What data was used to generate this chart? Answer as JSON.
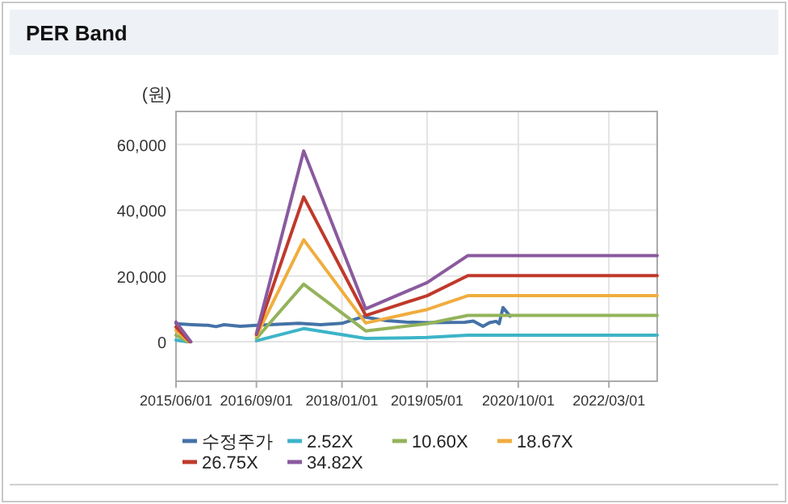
{
  "chart_data": {
    "type": "line",
    "title": "PER Band",
    "ylabel": "(원)",
    "xlim": [
      "2015-06-01",
      "2022-12-01"
    ],
    "xticks": [
      {
        "value": "2015-06-01",
        "label": "2015/06/01"
      },
      {
        "value": "2016-09-01",
        "label": "2016/09/01"
      },
      {
        "value": "2018-01-01",
        "label": "2018/01/01"
      },
      {
        "value": "2019-05-01",
        "label": "2019/05/01"
      },
      {
        "value": "2020-10-01",
        "label": "2020/10/01"
      },
      {
        "value": "2022-03-01",
        "label": "2022/03/01"
      }
    ],
    "ylim": [
      -12000,
      70000
    ],
    "yticks": [
      {
        "value": 0,
        "label": "0"
      },
      {
        "value": 20000,
        "label": "20,000"
      },
      {
        "value": 40000,
        "label": "40,000"
      },
      {
        "value": 60000,
        "label": "60,000"
      }
    ],
    "grid": true,
    "legend": "bottom",
    "series": [
      {
        "name": "수정주가",
        "color": "#4572a7",
        "x": [
          "2015-06-01",
          "2015-09-01",
          "2015-12-01",
          "2016-01-15",
          "2016-03-01",
          "2016-06-01",
          "2016-09-01",
          "2017-01-01",
          "2017-05-01",
          "2017-09-01",
          "2018-01-01",
          "2018-05-01",
          "2018-09-01",
          "2019-01-01",
          "2019-05-01",
          "2019-12-01",
          "2020-01-19",
          "2020-03-14",
          "2020-04-20",
          "2020-05-27",
          "2020-06-14",
          "2020-07-06",
          "2020-08-15"
        ],
        "values": [
          5500,
          5200,
          5000,
          4600,
          5200,
          4700,
          5000,
          5300,
          5600,
          5200,
          5600,
          7600,
          6500,
          6000,
          5800,
          5900,
          6300,
          4700,
          5800,
          6200,
          5500,
          10400,
          7800
        ]
      },
      {
        "name": "2.52X",
        "color": "#3cb4c8",
        "x": [
          "2015-06-01",
          "2015-08-01",
          "2016-01-01",
          "2016-09-01",
          "2017-05-28",
          "2018-05-16",
          "2019-05-01",
          "2019-12-19",
          "2022-12-01"
        ],
        "values": [
          500,
          0,
          null,
          300,
          4000,
          1000,
          1300,
          2000,
          2000
        ]
      },
      {
        "name": "10.60X",
        "color": "#93b35a",
        "x": [
          "2015-06-01",
          "2015-08-10",
          "2016-01-01",
          "2016-09-01",
          "2017-05-28",
          "2018-05-16",
          "2019-05-01",
          "2019-12-19",
          "2022-12-01"
        ],
        "values": [
          2000,
          0,
          null,
          1000,
          17500,
          3300,
          5500,
          8000,
          8000
        ]
      },
      {
        "name": "18.67X",
        "color": "#f0ad3e",
        "x": [
          "2015-06-01",
          "2015-08-15",
          "2016-01-01",
          "2016-09-01",
          "2017-05-28",
          "2018-05-16",
          "2019-05-01",
          "2019-12-19",
          "2022-12-01"
        ],
        "values": [
          3500,
          0,
          null,
          1800,
          31000,
          5700,
          9800,
          14000,
          14000
        ]
      },
      {
        "name": "26.75X",
        "color": "#c0392b",
        "x": [
          "2015-06-01",
          "2015-08-20",
          "2016-01-01",
          "2016-09-01",
          "2017-05-28",
          "2018-05-16",
          "2019-05-01",
          "2019-12-19",
          "2022-12-01"
        ],
        "values": [
          4500,
          0,
          null,
          2200,
          44000,
          8000,
          14000,
          20100,
          20100
        ]
      },
      {
        "name": "34.82X",
        "color": "#8a5a9e",
        "x": [
          "2015-06-01",
          "2015-08-25",
          "2016-01-01",
          "2016-09-01",
          "2017-05-28",
          "2018-05-16",
          "2019-05-01",
          "2019-12-19",
          "2022-12-01"
        ],
        "values": [
          6000,
          0,
          null,
          2500,
          58000,
          10000,
          18000,
          26200,
          26200
        ]
      }
    ]
  }
}
